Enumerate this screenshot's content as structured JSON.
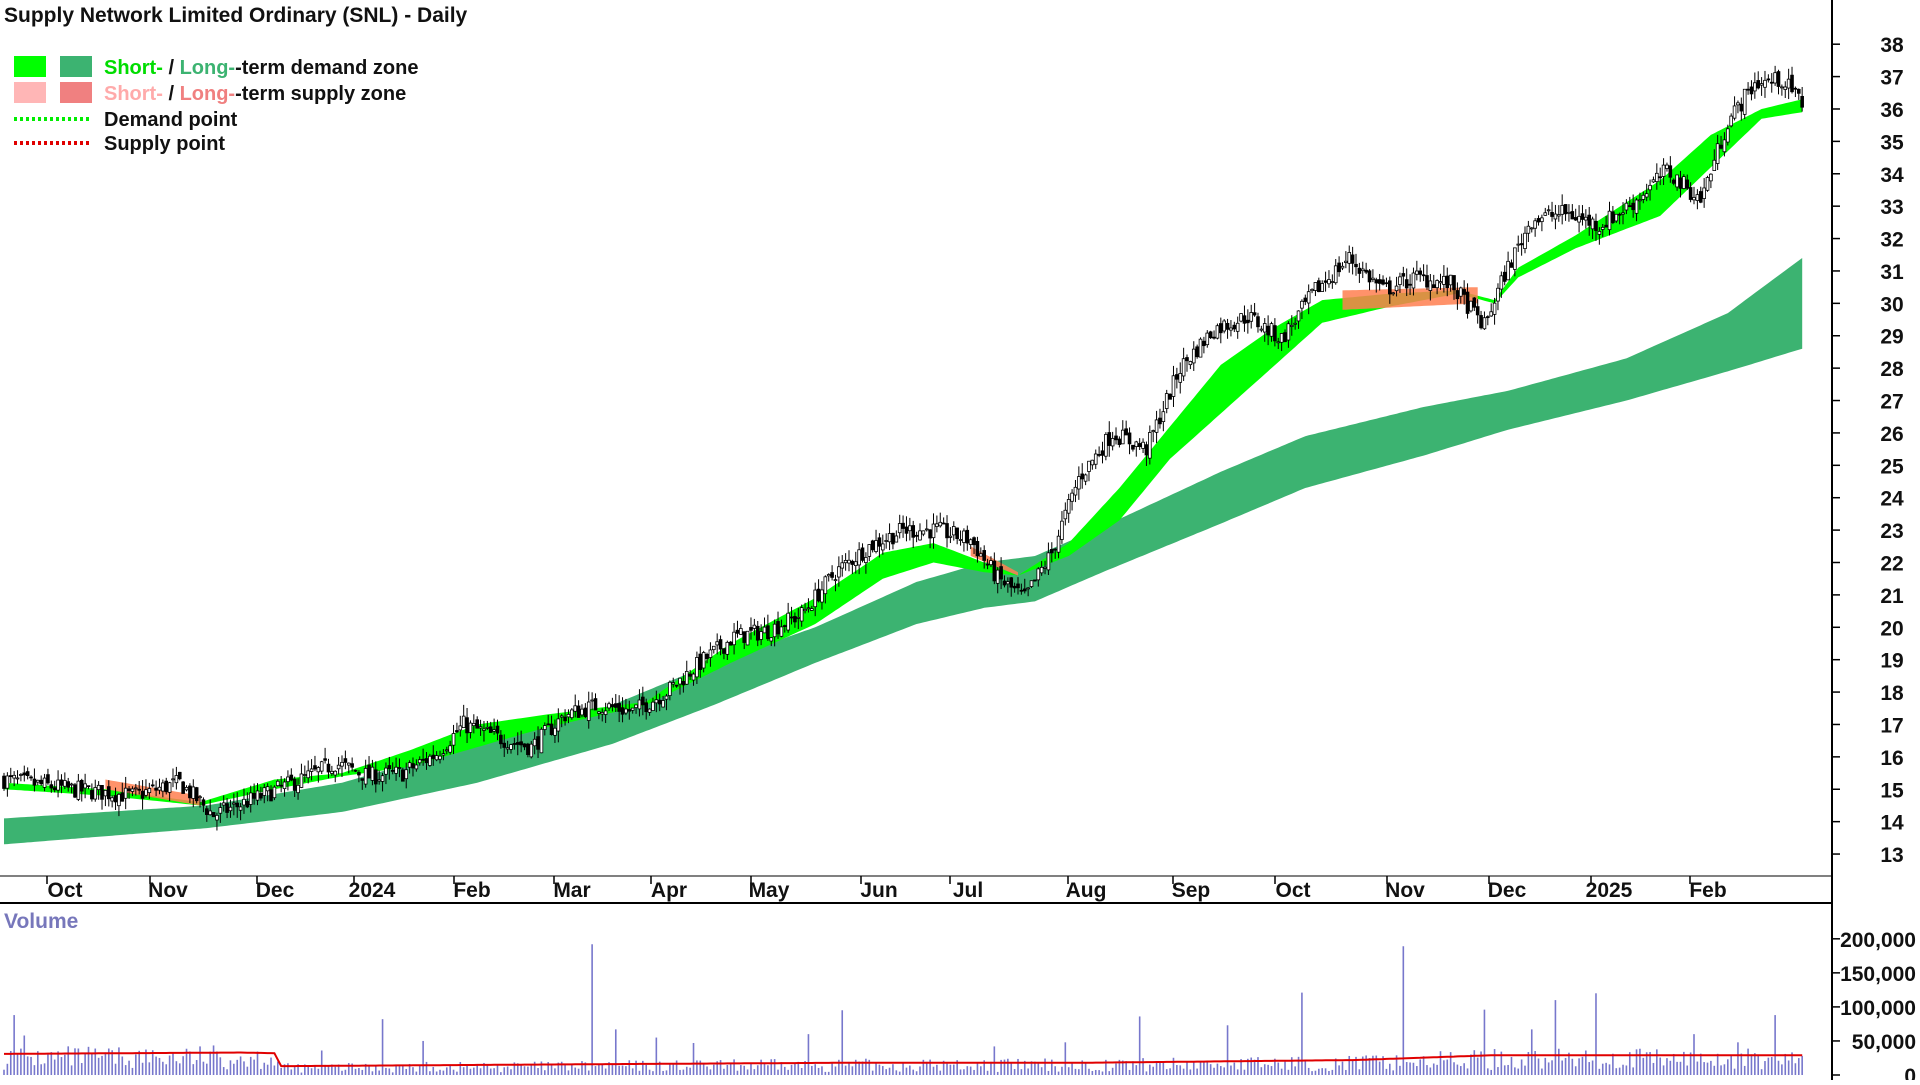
{
  "chart_data": [
    {
      "type": "candlestick",
      "title": "Supply Network Limited Ordinary (SNL) - Daily",
      "legend": [
        {
          "label_short": "Short-",
          "label_sep": " / ",
          "label_long": "Long-",
          "label_rest": "-term demand zone",
          "color_short": "#00ff00",
          "color_long": "#3cb371"
        },
        {
          "label_short": "Short-",
          "label_sep": " / ",
          "label_long": "Long-",
          "label_rest": "-term supply zone",
          "color_short": "#ffb6b6",
          "color_long": "#f08080"
        },
        {
          "label": "Demand point",
          "color": "#00ff00",
          "style": "dotted"
        },
        {
          "label": "Supply point",
          "color": "#e00000",
          "style": "dotted"
        }
      ],
      "legend_position": "top-left",
      "y_axis_position": "right",
      "ylim": [
        12.6,
        38.5
      ],
      "yticks": [
        13,
        14,
        15,
        16,
        17,
        18,
        19,
        20,
        21,
        22,
        23,
        24,
        25,
        26,
        27,
        28,
        29,
        30,
        31,
        32,
        33,
        34,
        35,
        36,
        37,
        38
      ],
      "x_tick_labels": [
        "Oct",
        "Nov",
        "Dec",
        "2024",
        "Feb",
        "Mar",
        "Apr",
        "May",
        "Jun",
        "Jul",
        "Aug",
        "Sep",
        "Oct",
        "Nov",
        "Dec",
        "2025",
        "Feb"
      ],
      "price_path": [
        [
          0,
          15.3
        ],
        [
          20,
          15.0
        ],
        [
          38,
          14.8
        ],
        [
          52,
          15.2
        ],
        [
          62,
          14.2
        ],
        [
          74,
          14.7
        ],
        [
          88,
          15.3
        ],
        [
          98,
          15.8
        ],
        [
          108,
          15.4
        ],
        [
          118,
          15.5
        ],
        [
          128,
          16.1
        ],
        [
          136,
          17.0
        ],
        [
          146,
          16.6
        ],
        [
          156,
          16.3
        ],
        [
          166,
          17.3
        ],
        [
          176,
          17.6
        ],
        [
          186,
          17.4
        ],
        [
          196,
          18.0
        ],
        [
          206,
          18.9
        ],
        [
          216,
          19.7
        ],
        [
          226,
          19.9
        ],
        [
          236,
          20.4
        ],
        [
          246,
          21.7
        ],
        [
          256,
          22.5
        ],
        [
          266,
          23.0
        ],
        [
          276,
          23.0
        ],
        [
          286,
          22.7
        ],
        [
          294,
          21.5
        ],
        [
          302,
          20.9
        ],
        [
          310,
          22.3
        ],
        [
          318,
          24.6
        ],
        [
          328,
          26.0
        ],
        [
          338,
          25.5
        ],
        [
          348,
          28.0
        ],
        [
          358,
          29.2
        ],
        [
          368,
          29.6
        ],
        [
          378,
          28.9
        ],
        [
          388,
          30.4
        ],
        [
          398,
          31.4
        ],
        [
          408,
          30.4
        ],
        [
          418,
          30.8
        ],
        [
          428,
          30.6
        ],
        [
          438,
          29.3
        ],
        [
          444,
          30.9
        ],
        [
          452,
          32.6
        ],
        [
          462,
          32.8
        ],
        [
          472,
          32.4
        ],
        [
          482,
          33.1
        ],
        [
          492,
          34.1
        ],
        [
          502,
          33.2
        ],
        [
          510,
          35.6
        ],
        [
          518,
          36.8
        ],
        [
          526,
          36.9
        ],
        [
          532,
          36.2
        ]
      ],
      "long_term_demand_zone": [
        [
          0,
          13.3,
          14.1
        ],
        [
          60,
          13.8,
          14.5
        ],
        [
          100,
          14.3,
          15.2
        ],
        [
          140,
          15.2,
          16.4
        ],
        [
          180,
          16.4,
          17.6
        ],
        [
          210,
          17.6,
          18.9
        ],
        [
          240,
          18.9,
          20.0
        ],
        [
          270,
          20.1,
          21.4
        ],
        [
          290,
          20.6,
          22.0
        ],
        [
          305,
          20.8,
          22.2
        ],
        [
          325,
          21.7,
          23.1
        ],
        [
          360,
          23.2,
          24.8
        ],
        [
          385,
          24.3,
          25.9
        ],
        [
          420,
          25.3,
          26.8
        ],
        [
          445,
          26.1,
          27.3
        ],
        [
          480,
          27.0,
          28.3
        ],
        [
          510,
          27.9,
          29.7
        ],
        [
          532,
          28.6,
          31.4
        ]
      ],
      "short_term_demand_zone": [
        [
          0,
          15.0,
          15.2
        ],
        [
          30,
          14.8,
          15.0
        ],
        [
          58,
          14.5,
          14.6
        ],
        [
          80,
          15.0,
          15.3
        ],
        [
          100,
          15.4,
          15.5
        ],
        [
          120,
          15.7,
          16.2
        ],
        [
          140,
          16.3,
          17.0
        ],
        [
          160,
          16.9,
          17.3
        ],
        [
          190,
          17.6,
          17.7
        ],
        [
          215,
          18.9,
          19.5
        ],
        [
          240,
          20.1,
          20.9
        ],
        [
          260,
          21.5,
          22.3
        ],
        [
          275,
          22.0,
          22.6
        ],
        [
          290,
          21.7,
          22.0
        ],
        [
          300,
          21.6,
          21.6
        ],
        [
          315,
          22.2,
          22.6
        ],
        [
          330,
          23.3,
          24.3
        ],
        [
          345,
          25.2,
          26.2
        ],
        [
          360,
          26.6,
          28.1
        ],
        [
          375,
          28.0,
          29.2
        ],
        [
          390,
          29.4,
          30.1
        ],
        [
          410,
          29.9,
          30.3
        ],
        [
          430,
          30.3,
          30.4
        ],
        [
          441,
          30.0,
          30.1
        ],
        [
          448,
          30.8,
          31.1
        ],
        [
          465,
          31.7,
          32.1
        ],
        [
          490,
          32.7,
          33.8
        ],
        [
          505,
          34.2,
          35.2
        ],
        [
          520,
          35.7,
          36.0
        ],
        [
          532,
          35.9,
          36.3
        ]
      ],
      "short_term_supply_zone": [
        [
          30,
          15.0,
          15.3
        ],
        [
          58,
          14.5,
          14.8
        ],
        [
          286,
          22.2,
          22.5
        ],
        [
          300,
          21.6,
          21.7
        ],
        [
          396,
          29.8,
          30.4
        ],
        [
          436,
          30.0,
          30.5
        ]
      ]
    },
    {
      "type": "bar",
      "title": "Volume",
      "ylim": [
        0,
        210000
      ],
      "yticks": [
        "200,000",
        "150,000",
        "100,000",
        "50,000",
        "0"
      ],
      "ytick_values": [
        200000,
        150000,
        100000,
        50000,
        0
      ],
      "bar_color": "#7777cc",
      "average_line_color": "#e00000",
      "average_level": [
        [
          0,
          31000
        ],
        [
          70,
          33000
        ],
        [
          80,
          32000
        ],
        [
          82,
          13000
        ],
        [
          180,
          16000
        ],
        [
          250,
          18000
        ],
        [
          320,
          18000
        ],
        [
          400,
          22000
        ],
        [
          440,
          29000
        ],
        [
          532,
          29000
        ]
      ],
      "spikes": [
        [
          3,
          88000
        ],
        [
          6,
          58000
        ],
        [
          57,
          22000
        ],
        [
          94,
          36000
        ],
        [
          112,
          82000
        ],
        [
          124,
          50000
        ],
        [
          174,
          192000
        ],
        [
          181,
          67000
        ],
        [
          193,
          55000
        ],
        [
          204,
          47000
        ],
        [
          238,
          60000
        ],
        [
          248,
          95000
        ],
        [
          293,
          42000
        ],
        [
          314,
          48000
        ],
        [
          336,
          86000
        ],
        [
          362,
          73000
        ],
        [
          384,
          121000
        ],
        [
          414,
          189000
        ],
        [
          438,
          96000
        ],
        [
          452,
          67000
        ],
        [
          459,
          110000
        ],
        [
          471,
          120000
        ],
        [
          500,
          60000
        ],
        [
          513,
          48000
        ],
        [
          524,
          88000
        ]
      ]
    }
  ]
}
